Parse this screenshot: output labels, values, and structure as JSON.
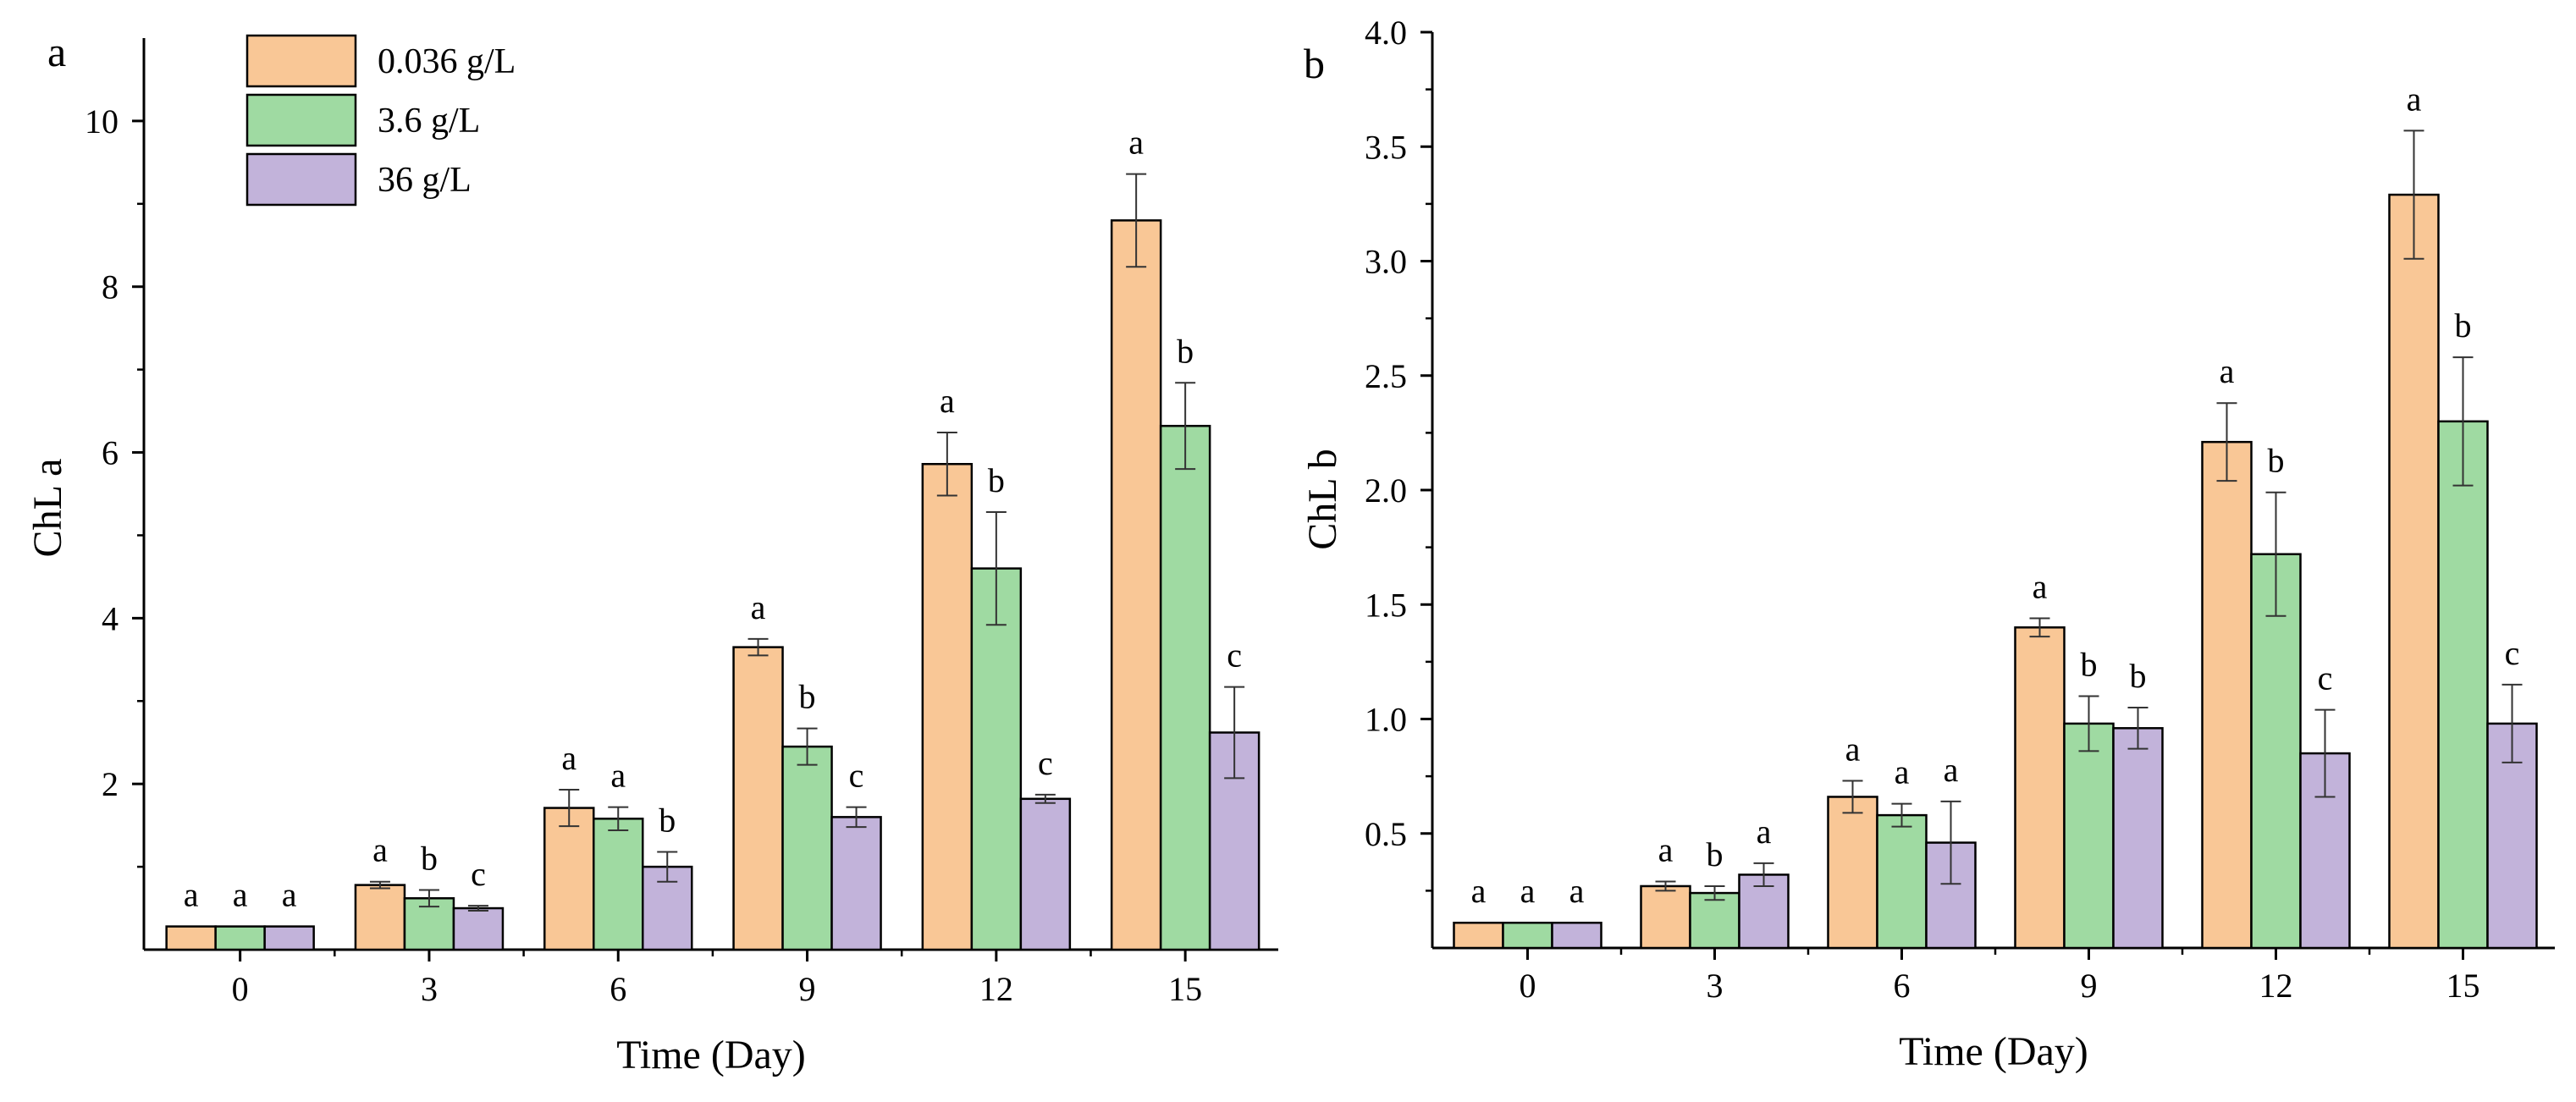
{
  "legend": {
    "entries": [
      {
        "label": "0.036 g/L",
        "color": "#F9C796"
      },
      {
        "label": "3.6 g/L",
        "color": "#9FDAA2"
      },
      {
        "label": "36 g/L",
        "color": "#C2B3DA"
      }
    ]
  },
  "chart_data": [
    {
      "type": "bar",
      "panel": "a",
      "title": "",
      "xlabel": "Time (Day)",
      "ylabel": "ChL a",
      "categories": [
        "0",
        "3",
        "6",
        "9",
        "12",
        "15"
      ],
      "ylim": [
        0,
        11
      ],
      "yticks": [
        2,
        4,
        6,
        8,
        10
      ],
      "series": [
        {
          "name": "0.036 g/L",
          "values": [
            0.28,
            0.78,
            1.71,
            3.65,
            5.86,
            8.8
          ],
          "errors": [
            0.0,
            0.04,
            0.22,
            0.1,
            0.38,
            0.56
          ],
          "labels": [
            "a",
            "a",
            "a",
            "a",
            "a",
            "a"
          ]
        },
        {
          "name": "3.6 g/L",
          "values": [
            0.28,
            0.62,
            1.58,
            2.45,
            4.6,
            6.32
          ],
          "errors": [
            0.0,
            0.1,
            0.14,
            0.22,
            0.68,
            0.52
          ],
          "labels": [
            "a",
            "b",
            "a",
            "b",
            "b",
            "b"
          ]
        },
        {
          "name": "36 g/L",
          "values": [
            0.28,
            0.5,
            1.0,
            1.6,
            1.82,
            2.62
          ],
          "errors": [
            0.0,
            0.03,
            0.18,
            0.12,
            0.05,
            0.55
          ],
          "labels": [
            "a",
            "c",
            "b",
            "c",
            "c",
            "c"
          ]
        }
      ]
    },
    {
      "type": "bar",
      "panel": "b",
      "title": "",
      "xlabel": "Time (Day)",
      "ylabel": "ChL b",
      "categories": [
        "0",
        "3",
        "6",
        "9",
        "12",
        "15"
      ],
      "ylim": [
        0,
        4.0
      ],
      "yticks": [
        "0.5",
        "1.0",
        "1.5",
        "2.0",
        "2.5",
        "3.0",
        "3.5",
        "4.0"
      ],
      "series": [
        {
          "name": "0.036 g/L",
          "values": [
            0.11,
            0.27,
            0.66,
            1.4,
            2.21,
            3.29
          ],
          "errors": [
            0.0,
            0.02,
            0.07,
            0.04,
            0.17,
            0.28
          ],
          "labels": [
            "a",
            "a",
            "a",
            "a",
            "a",
            "a"
          ]
        },
        {
          "name": "3.6 g/L",
          "values": [
            0.11,
            0.24,
            0.58,
            0.98,
            1.72,
            2.3
          ],
          "errors": [
            0.0,
            0.03,
            0.05,
            0.12,
            0.27,
            0.28
          ],
          "labels": [
            "a",
            "b",
            "a",
            "b",
            "b",
            "b"
          ]
        },
        {
          "name": "36 g/L",
          "values": [
            0.11,
            0.32,
            0.46,
            0.96,
            0.85,
            0.98
          ],
          "errors": [
            0.0,
            0.05,
            0.18,
            0.09,
            0.19,
            0.17
          ],
          "labels": [
            "a",
            "a",
            "a",
            "b",
            "c",
            "c"
          ]
        }
      ]
    }
  ]
}
